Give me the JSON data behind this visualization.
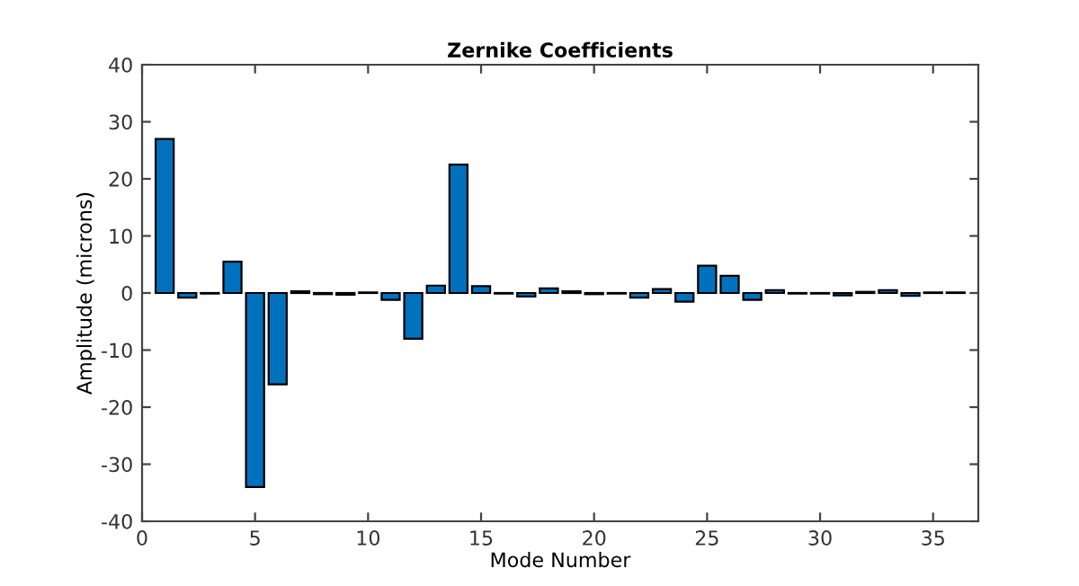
{
  "chart_data": {
    "type": "bar",
    "title": "Zernike Coefficients",
    "xlabel": "Mode Number",
    "ylabel": "Amplitude (microns)",
    "x": [
      1,
      2,
      3,
      4,
      5,
      6,
      7,
      8,
      9,
      10,
      11,
      12,
      13,
      14,
      15,
      16,
      17,
      18,
      19,
      20,
      21,
      22,
      23,
      24,
      25,
      26,
      27,
      28,
      29,
      30,
      31,
      32,
      33,
      34,
      35,
      36
    ],
    "values": [
      27,
      -0.8,
      -0.1,
      5.5,
      -34,
      -16,
      0.3,
      -0.2,
      -0.3,
      0.1,
      -1.2,
      -8,
      1.3,
      22.5,
      1.2,
      -0.1,
      -0.6,
      0.8,
      0.3,
      -0.2,
      -0.1,
      -0.8,
      0.7,
      -1.5,
      4.8,
      3,
      -1.2,
      0.5,
      -0.1,
      -0.1,
      -0.4,
      0.2,
      0.5,
      -0.5,
      0.1,
      0.1
    ],
    "color": "#0072bd",
    "xlim": [
      0,
      37
    ],
    "xticks": [
      0,
      5,
      10,
      15,
      20,
      25,
      30,
      35
    ],
    "ylim": [
      -40,
      40
    ],
    "yticks": [
      -40,
      -30,
      -20,
      -10,
      0,
      10,
      20,
      30,
      40
    ],
    "grid": false
  }
}
